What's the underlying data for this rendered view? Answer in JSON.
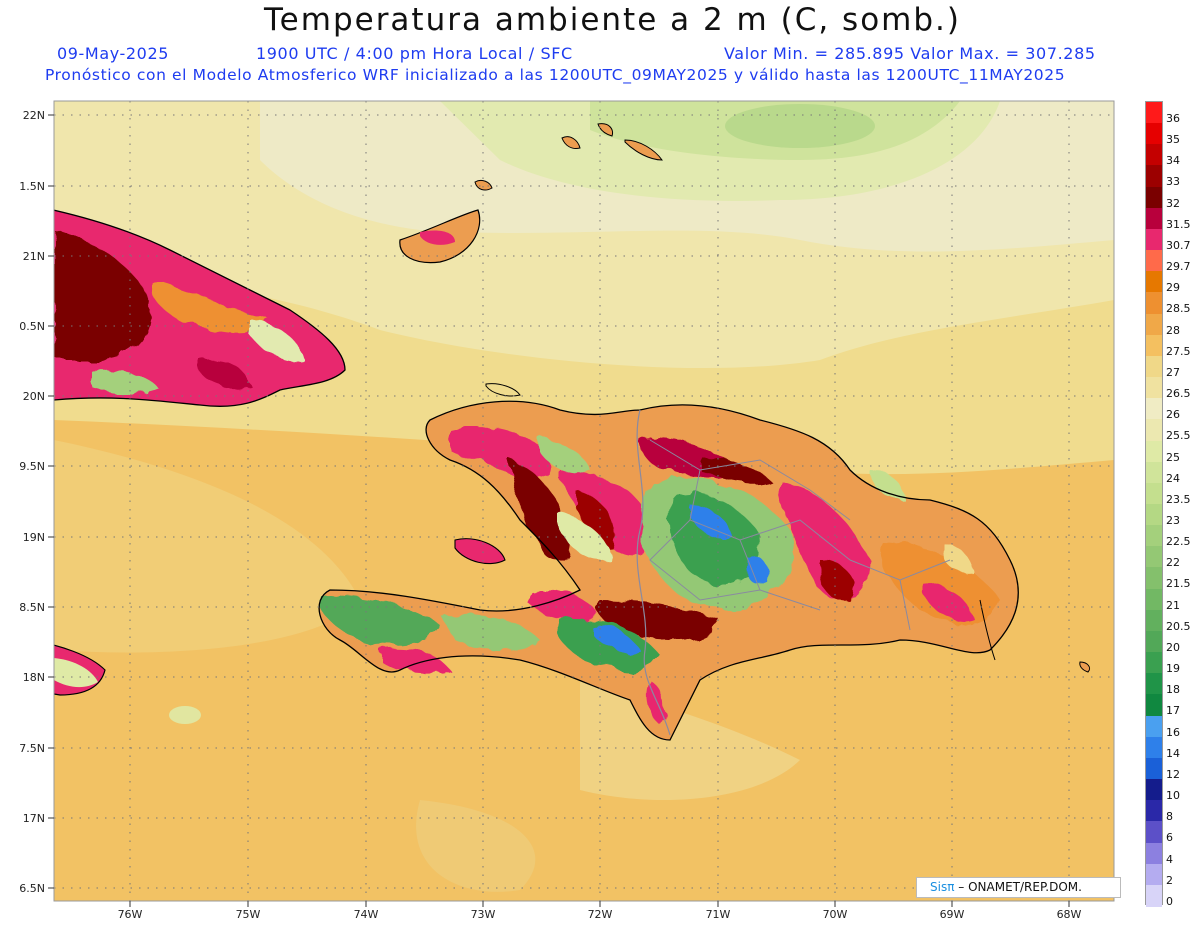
{
  "title": "Temperatura ambiente a 2 m (C, somb.)",
  "subtitle": {
    "date": "09-May-2025",
    "time": "1900 UTC / 4:00 pm Hora Local / SFC",
    "minmax": "Valor Min. = 285.895  Valor Max. = 307.285",
    "model": "Pronóstico con el Modelo Atmosferico WRF inicializado a las 1200UTC_09MAY2025 y válido hasta las  1200UTC_11MAY2025"
  },
  "lat_labels": [
    "22N",
    "1.5N",
    "21N",
    "0.5N",
    "20N",
    "9.5N",
    "19N",
    "8.5N",
    "18N",
    "7.5N",
    "17N",
    "6.5N"
  ],
  "lon_labels": [
    "76W",
    "75W",
    "74W",
    "73W",
    "72W",
    "71W",
    "70W",
    "69W",
    "68W"
  ],
  "legend": {
    "labels": [
      "36",
      "35",
      "34",
      "33",
      "32",
      "31.5",
      "30.7",
      "29.7",
      "29",
      "28.5",
      "28",
      "27.5",
      "27",
      "26.5",
      "26",
      "25.5",
      "25",
      "24",
      "23.5",
      "23",
      "22.5",
      "22",
      "21.5",
      "21",
      "20.5",
      "20",
      "19",
      "18",
      "17",
      "16",
      "14",
      "12",
      "10",
      "8",
      "6",
      "4",
      "2",
      "0"
    ],
    "colors": [
      "#ff1a1a",
      "#e60000",
      "#c40000",
      "#9c0000",
      "#7a0000",
      "#b8003c",
      "#e8286e",
      "#ff6a4a",
      "#e67800",
      "#ee9030",
      "#f0a848",
      "#f4c060",
      "#f0d888",
      "#f0e2a0",
      "#f0ecc4",
      "#ece8b0",
      "#dfeaa6",
      "#d0e49a",
      "#c4df8e",
      "#b4d884",
      "#a4d07c",
      "#94c874",
      "#84c06c",
      "#72b864",
      "#62b05e",
      "#52a858",
      "#3aa050",
      "#209448",
      "#108840",
      "#4aa0f0",
      "#2e80ea",
      "#1a60d8",
      "#141c8c",
      "#2a28a8",
      "#5c50c8",
      "#8c80e0",
      "#b4acf0",
      "#d8d4f8"
    ]
  },
  "credit": {
    "brand": "Sisπ",
    "text": "– ONAMET/REP.DOM."
  }
}
